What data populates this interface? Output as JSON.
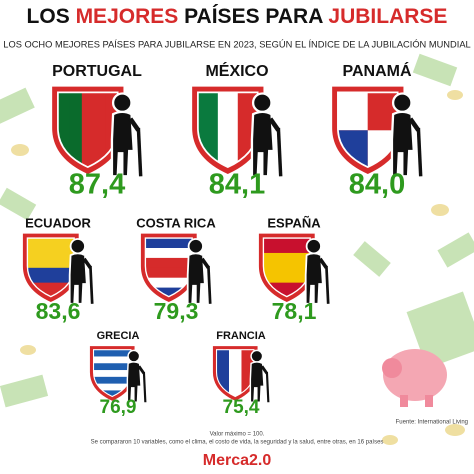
{
  "header": {
    "title_parts": [
      "LOS",
      "MEJORES",
      "PAÍSES PARA",
      "JUBILARSE"
    ],
    "subtitle": "LOS OCHO MEJORES PAÍSES PARA JUBILARSE EN 2023, SEGÚN EL ÍNDICE DE LA JUBILACIÓN MUNDIAL"
  },
  "countries": [
    {
      "name": "PORTUGAL",
      "score": "87,4"
    },
    {
      "name": "MÉXICO",
      "score": "84,1"
    },
    {
      "name": "PANAMÁ",
      "score": "84,0"
    },
    {
      "name": "ECUADOR",
      "score": "83,6"
    },
    {
      "name": "COSTA RICA",
      "score": "79,3"
    },
    {
      "name": "ESPAÑA",
      "score": "78,1"
    },
    {
      "name": "GRECIA",
      "score": "76,9"
    },
    {
      "name": "FRANCIA",
      "score": "75,4"
    }
  ],
  "notes": [
    "Valor máximo = 100.",
    "Se compararon 10 variables, como el clima, el costo de vida, la seguridad y la salud, entre otras, en 16 países"
  ],
  "source": "Fuente: International Living",
  "logo": "Merca2.0"
}
